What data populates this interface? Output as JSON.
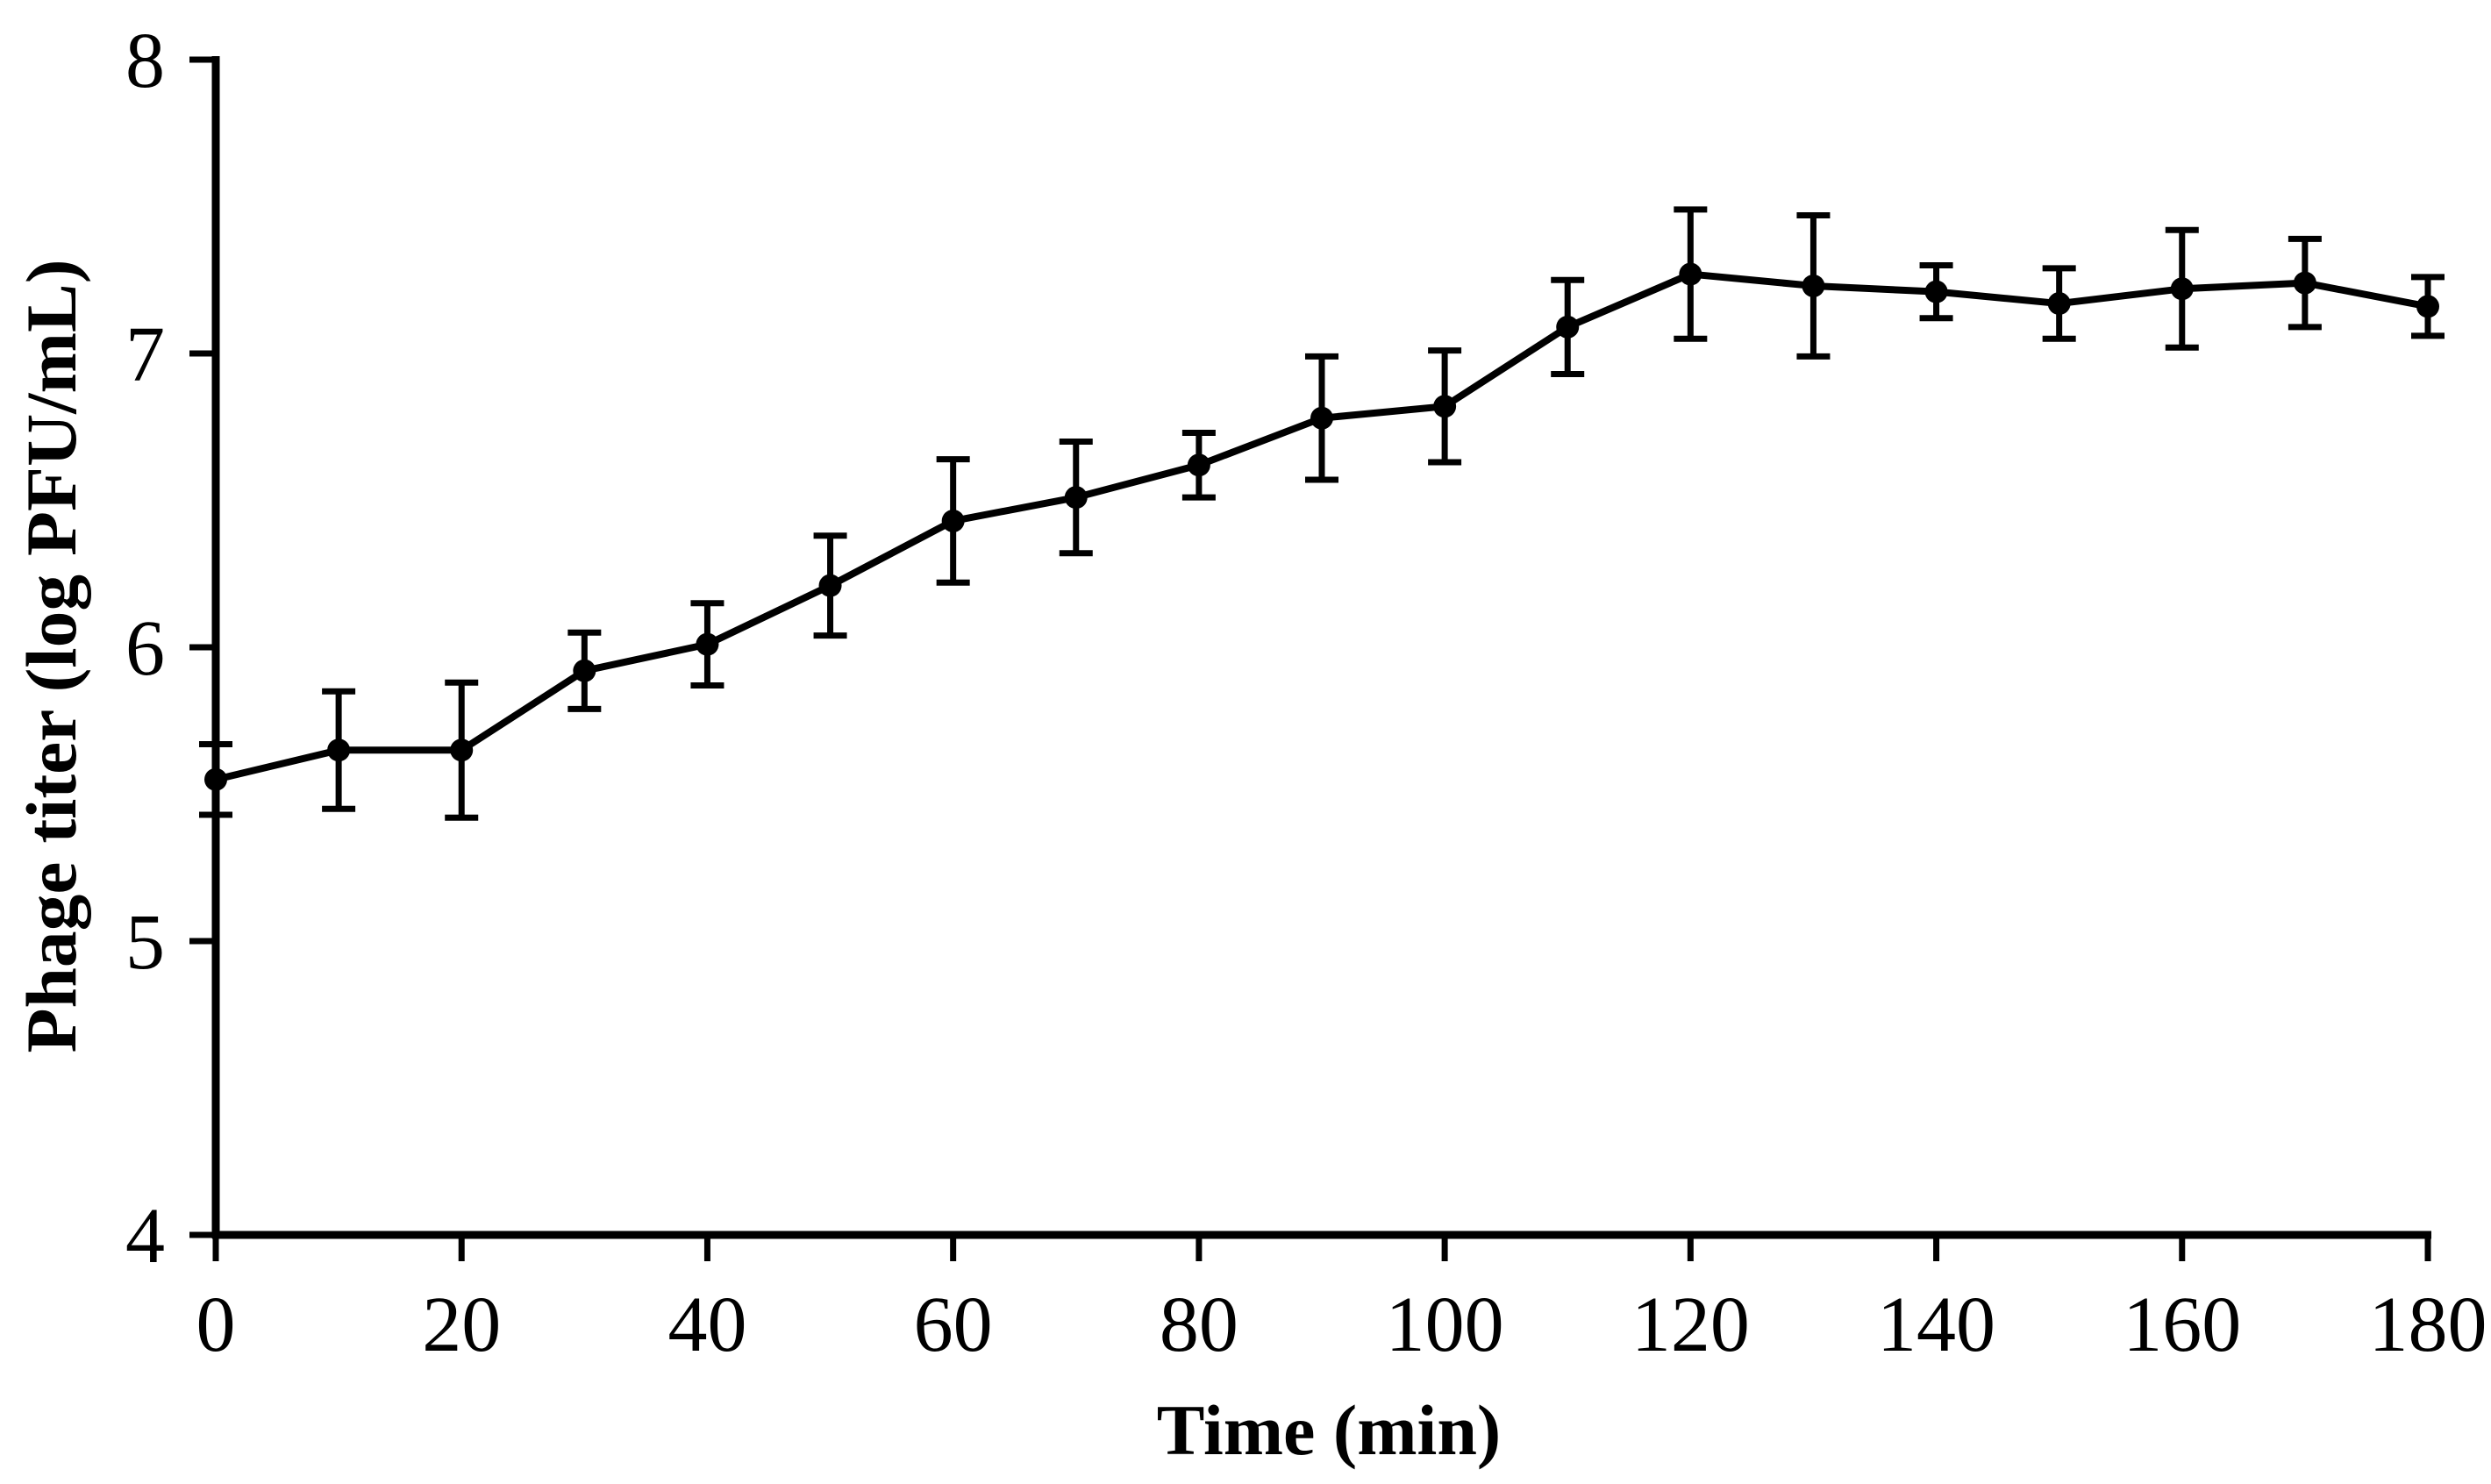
{
  "figure": {
    "background_color": "#ffffff",
    "foreground_color": "#000000"
  },
  "chart_data": {
    "type": "line",
    "title": "",
    "xlabel": "Time (min)",
    "ylabel": "Phage titer (log PFU/mL)",
    "x": [
      0,
      10,
      20,
      30,
      40,
      50,
      60,
      70,
      80,
      90,
      100,
      110,
      120,
      130,
      140,
      150,
      160,
      170,
      180
    ],
    "series": [
      {
        "name": "Phage titer",
        "values": [
          5.55,
          5.65,
          5.65,
          5.92,
          6.01,
          6.21,
          6.43,
          6.51,
          6.62,
          6.78,
          6.82,
          7.09,
          7.27,
          7.23,
          7.21,
          7.17,
          7.22,
          7.24,
          7.16
        ],
        "errors": [
          0.12,
          0.2,
          0.23,
          0.13,
          0.14,
          0.17,
          0.21,
          0.19,
          0.11,
          0.21,
          0.19,
          0.16,
          0.22,
          0.24,
          0.09,
          0.12,
          0.2,
          0.15,
          0.1
        ],
        "color": "#000000",
        "marker": "filled-circle"
      }
    ],
    "xlim": [
      0,
      180
    ],
    "ylim": [
      4,
      8
    ],
    "x_ticks": [
      0,
      20,
      40,
      60,
      80,
      100,
      120,
      140,
      160,
      180
    ],
    "y_ticks": [
      4,
      5,
      6,
      7,
      8
    ],
    "grid": false,
    "legend_position": "none",
    "error_bars": "vertical-with-caps"
  }
}
